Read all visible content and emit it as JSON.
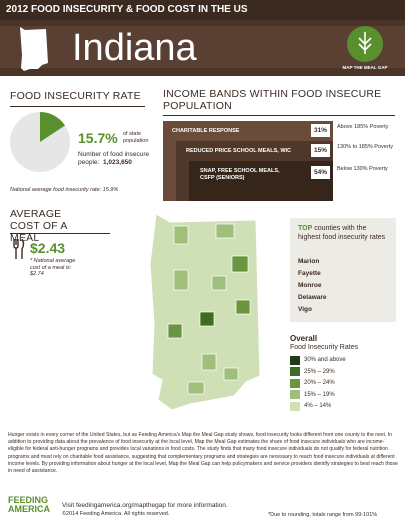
{
  "header": {
    "banner": "2012 FOOD INSECURITY & FOOD COST IN THE US",
    "state": "Indiana",
    "logo": "MAP THE MEAL GAP"
  },
  "food_insecurity": {
    "title": "FOOD INSECURITY RATE",
    "rate": 15.7,
    "rate_label": "15.7%",
    "rate_note": "of state population",
    "people_label": "Number of food insecure people:",
    "people": "1,023,650",
    "national": "National average food insecurity rate: 15.9%"
  },
  "income_bands": {
    "title": "INCOME BANDS WITHIN FOOD INSECURE POPULATION",
    "bands": [
      {
        "label": "CHARITABLE RESPONSE",
        "percent": "31%",
        "range": "Above 185% Poverty"
      },
      {
        "label": "REDUCED PRICE SCHOOL MEALS, WIC",
        "percent": "15%",
        "range": "130% to 185% Poverty"
      },
      {
        "label": "SNAP, FREE SCHOOL MEALS, CSFP (SENIORS)",
        "percent": "54%",
        "range": "Below 130% Poverty"
      }
    ]
  },
  "meal_cost": {
    "title": "AVERAGE COST OF A MEAL",
    "value": "$2.43",
    "note": "* National average cost of a meal is: $2.74"
  },
  "top_counties": {
    "title_bold": "TOP",
    "title": "counties with the highest food insecurity rates",
    "counties": [
      "Marion",
      "Fayette",
      "Monroe",
      "Delaware",
      "Vigo"
    ]
  },
  "legend": {
    "title": "Overall",
    "subtitle": "Food Insecurity Rates",
    "items": [
      {
        "label": "30% and above",
        "color": "#1f3d12"
      },
      {
        "label": "25% – 29%",
        "color": "#3f6b22"
      },
      {
        "label": "20% – 24%",
        "color": "#6a9640"
      },
      {
        "label": "15% – 19%",
        "color": "#9fbf7a"
      },
      {
        "label": "4% – 14%",
        "color": "#cfe0b6"
      }
    ]
  },
  "body_text": "Hunger exists in every corner of the United States, but as Feeding America's Map the Meal Gap study shows, food insecurity looks different from one county to the next. In addition to providing data about the prevalence of food insecurity at the local level, Map the Meal Gap estimates the share of food insecure individuals who are income-eligible for federal anti-hunger programs and provides local variations in food costs. The study finds that many food insecure individuals do not qualify for federal nutrition programs and must rely on charitable food assistance, suggesting that complementary programs and strategies are necessary to reach food insecure individuals at different income levels. By providing information about hunger at the local level, Map the Meal Gap can help policymakers and service providers identify strategies to best reach those in need of assistance.",
  "footer": {
    "logo": "FEEDING AMERICA",
    "visit": "Visit feedingamerica.org/mapthegap for more information.",
    "copyright": "©2014 Feeding America. All rights reserved.",
    "rounding": "*Due to rounding, totals range from 99-101%"
  }
}
